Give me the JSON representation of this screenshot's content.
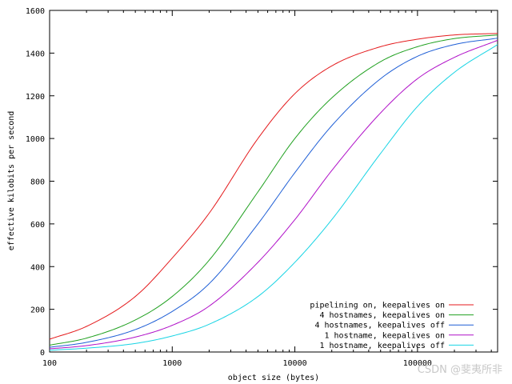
{
  "chart_data": {
    "type": "line",
    "xlabel": "object size (bytes)",
    "ylabel": "effective kilobits per second",
    "xscale": "log",
    "xlim": [
      100,
      450000
    ],
    "ylim": [
      0,
      1600
    ],
    "x_ticks": [
      100,
      1000,
      10000,
      100000
    ],
    "x_tick_labels": [
      "100",
      "1000",
      "10000",
      "100000"
    ],
    "y_ticks": [
      0,
      200,
      400,
      600,
      800,
      1000,
      1200,
      1400,
      1600
    ],
    "y_tick_labels": [
      "0",
      "200",
      "400",
      "600",
      "800",
      "1000",
      "1200",
      "1400",
      "1600"
    ],
    "grid": false,
    "legend_position": "bottom-right",
    "x": [
      100,
      200,
      500,
      1000,
      2000,
      5000,
      10000,
      20000,
      50000,
      100000,
      200000,
      450000
    ],
    "series": [
      {
        "name": "pipelining on, keepalives on",
        "color": "#e41a1c",
        "values": [
          60,
          120,
          260,
          440,
          650,
          1000,
          1210,
          1340,
          1430,
          1465,
          1485,
          1492
        ]
      },
      {
        "name": "4 hostnames, keepalives on",
        "color": "#21a121",
        "values": [
          32,
          65,
          150,
          260,
          430,
          750,
          1000,
          1190,
          1360,
          1430,
          1468,
          1485
        ]
      },
      {
        "name": "4 hostnames, keepalives off",
        "color": "#1f5fd6",
        "values": [
          22,
          45,
          105,
          190,
          320,
          600,
          840,
          1060,
          1280,
          1385,
          1440,
          1470
        ]
      },
      {
        "name": "1 hostname, keepalives on",
        "color": "#b010c8",
        "values": [
          15,
          30,
          70,
          125,
          215,
          420,
          620,
          850,
          1120,
          1280,
          1380,
          1460
        ]
      },
      {
        "name": "1 hostname, keepalives off",
        "color": "#18d4e4",
        "values": [
          8,
          18,
          40,
          75,
          130,
          260,
          420,
          620,
          930,
          1150,
          1310,
          1440
        ]
      }
    ]
  },
  "watermark": "CSDN @斐夷所非"
}
